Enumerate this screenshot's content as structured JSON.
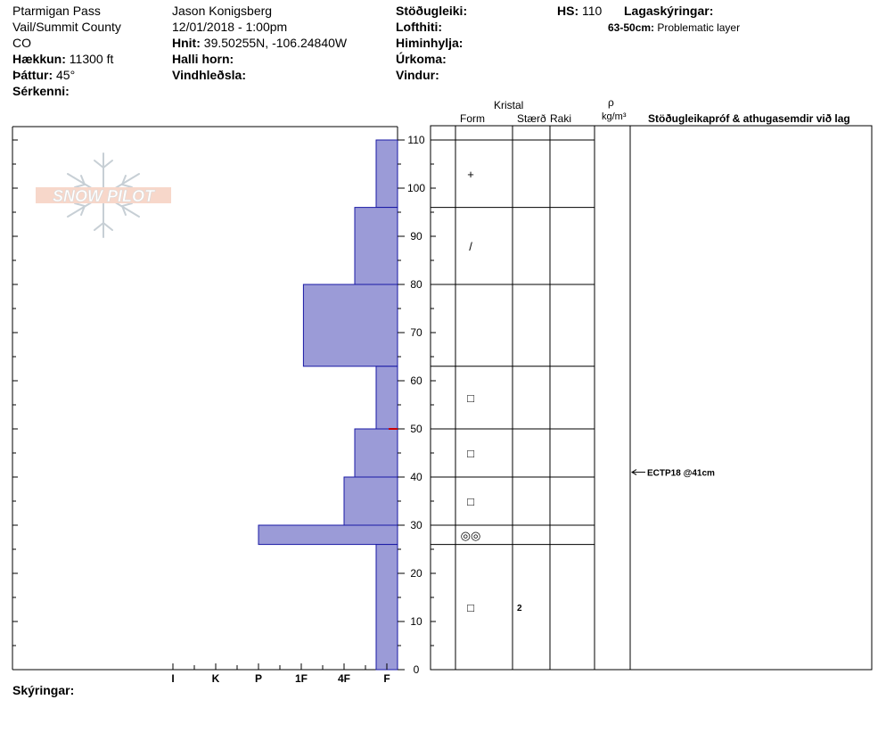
{
  "header": {
    "location_name": "Ptarmigan Pass",
    "location_area": "Vail/Summit County",
    "location_state": "CO",
    "elevation_label": "Hækkun:",
    "elevation_value": "11300 ft",
    "aspect_label": "Þáttur:",
    "aspect_value": "45°",
    "features_label": "Sérkenni:",
    "observer": "Jason Konigsberg",
    "datetime": "12/01/2018 - 1:00pm",
    "coords_label": "Hnit:",
    "coords_value": "39.50255N, -106.24840W",
    "slope_label": "Halli horn:",
    "wind_loading_label": "Vindhleðsla:",
    "stability_label": "Stöðugleiki:",
    "air_temp_label": "Lofthiti:",
    "sky_label": "Himinhylja:",
    "precip_label": "Úrkoma:",
    "wind_label": "Vindur:",
    "hs_label": "HS:",
    "hs_value": "110",
    "layer_notes_label": "Lagaskýringar:",
    "layer_note_range": "63-50cm:",
    "layer_note_text": "Problematic layer"
  },
  "logo": {
    "text": "SNOW PILOT"
  },
  "columns": {
    "crystal_header": "Kristal",
    "form": "Form",
    "size": "Stærð",
    "moisture": "Raki",
    "density_symbol": "ρ",
    "density_unit": "kg/m³",
    "tests_header": "Stöðugleikapróf & athugasemdir við lag"
  },
  "footer": {
    "notes_label": "Skýringar:"
  },
  "chart_data": {
    "type": "bar",
    "hardness_ticks": [
      "I",
      "K",
      "P",
      "1F",
      "4F",
      "F"
    ],
    "hardness_scale": {
      "F": 1,
      "4F": 2,
      "1F": 3,
      "P": 4,
      "K": 5,
      "I": 6
    },
    "ylim": [
      0,
      110
    ],
    "y_ticks": [
      0,
      10,
      20,
      30,
      40,
      50,
      60,
      70,
      80,
      90,
      100,
      110
    ],
    "layers": [
      {
        "bottom": 96,
        "top": 110,
        "hardness": 1.25,
        "form": "+",
        "size": ""
      },
      {
        "bottom": 80,
        "top": 96,
        "hardness": 1.75,
        "form": "/",
        "size": ""
      },
      {
        "bottom": 63,
        "top": 80,
        "hardness": 2.95,
        "form": "",
        "size": ""
      },
      {
        "bottom": 50,
        "top": 63,
        "hardness": 1.25,
        "form": "□",
        "size": ""
      },
      {
        "bottom": 40,
        "top": 50,
        "hardness": 1.75,
        "form": "□",
        "size": ""
      },
      {
        "bottom": 30,
        "top": 40,
        "hardness": 2.0,
        "form": "□",
        "size": ""
      },
      {
        "bottom": 26,
        "top": 30,
        "hardness": 4.0,
        "form": "◎◎",
        "size": ""
      },
      {
        "bottom": 0,
        "top": 26,
        "hardness": 1.25,
        "form": "□",
        "size": "2"
      }
    ],
    "problem_layer_marker": 50,
    "test_results": [
      {
        "text": "ECTP18 @41cm",
        "depth": 41
      }
    ]
  }
}
